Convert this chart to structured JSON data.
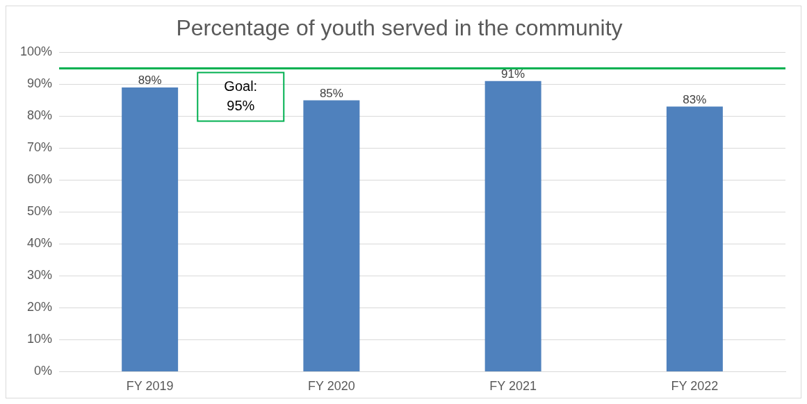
{
  "chart_data": {
    "type": "bar",
    "title": "Percentage of youth served in the community",
    "categories": [
      "FY 2019",
      "FY 2020",
      "FY 2021",
      "FY 2022"
    ],
    "values": [
      89,
      85,
      91,
      83
    ],
    "color": "#4f81bd",
    "value_labels": [
      "89%",
      "85%",
      "91%",
      "83%"
    ],
    "ylim": [
      0,
      100
    ],
    "yticks": [
      {
        "value": 0,
        "label": "0%"
      },
      {
        "value": 10,
        "label": "10%"
      },
      {
        "value": 20,
        "label": "20%"
      },
      {
        "value": 30,
        "label": "30%"
      },
      {
        "value": 40,
        "label": "40%"
      },
      {
        "value": 50,
        "label": "50%"
      },
      {
        "value": 60,
        "label": "60%"
      },
      {
        "value": 70,
        "label": "70%"
      },
      {
        "value": 80,
        "label": "80%"
      },
      {
        "value": 90,
        "label": "90%"
      },
      {
        "value": 100,
        "label": "100%"
      }
    ],
    "ref_lines": [
      {
        "axis": "y",
        "value": 95,
        "label": "Goal: 95%",
        "color": "#00b050"
      }
    ],
    "grid": "y",
    "legend": false
  }
}
